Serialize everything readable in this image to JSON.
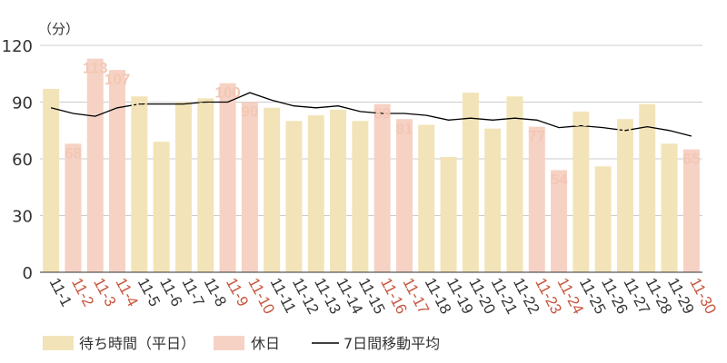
{
  "chart_data": {
    "type": "bar",
    "y_unit": "（分）",
    "ylim": [
      0,
      120
    ],
    "y_ticks": [
      "0",
      "30",
      "60",
      "90",
      "120"
    ],
    "grid": true,
    "categories": [
      "11-1",
      "11-2",
      "11-3",
      "11-4",
      "11-5",
      "11-6",
      "11-7",
      "11-8",
      "11-9",
      "11-10",
      "11-11",
      "11-12",
      "11-13",
      "11-14",
      "11-15",
      "11-16",
      "11-17",
      "11-18",
      "11-19",
      "11-20",
      "11-21",
      "11-22",
      "11-23",
      "11-24",
      "11-25",
      "11-26",
      "11-27",
      "11-28",
      "11-29",
      "11-30"
    ],
    "values": [
      97,
      68,
      113,
      107,
      93,
      69,
      90,
      92,
      100,
      90,
      87,
      80,
      83,
      86,
      80,
      89,
      81,
      78,
      61,
      95,
      76,
      93,
      77,
      54,
      85,
      56,
      81,
      89,
      68,
      65
    ],
    "holiday": [
      false,
      true,
      true,
      true,
      false,
      false,
      false,
      false,
      true,
      true,
      false,
      false,
      false,
      false,
      false,
      true,
      true,
      false,
      false,
      false,
      false,
      false,
      true,
      true,
      false,
      false,
      false,
      false,
      false,
      true
    ],
    "moving_average": [
      87,
      84,
      82.5,
      87,
      89,
      89,
      89,
      90,
      90,
      95,
      91,
      88,
      87,
      88,
      85,
      84,
      84,
      83,
      80.5,
      81.5,
      80.5,
      81.5,
      80.5,
      76.5,
      77.5,
      76.5,
      75,
      77,
      75,
      72
    ],
    "series": [
      {
        "name": "待ち時間（平日）",
        "color": "#f2e4b8",
        "label_color": "#f2e4b8",
        "tick_color": "#333333"
      },
      {
        "name": "休日",
        "color": "#f6d2c4",
        "label_color": "#f3c7b5",
        "tick_color": "#c8553d"
      },
      {
        "name": "7日間移動平均",
        "color": "#000000"
      }
    ],
    "legend_position": "bottom-left"
  }
}
